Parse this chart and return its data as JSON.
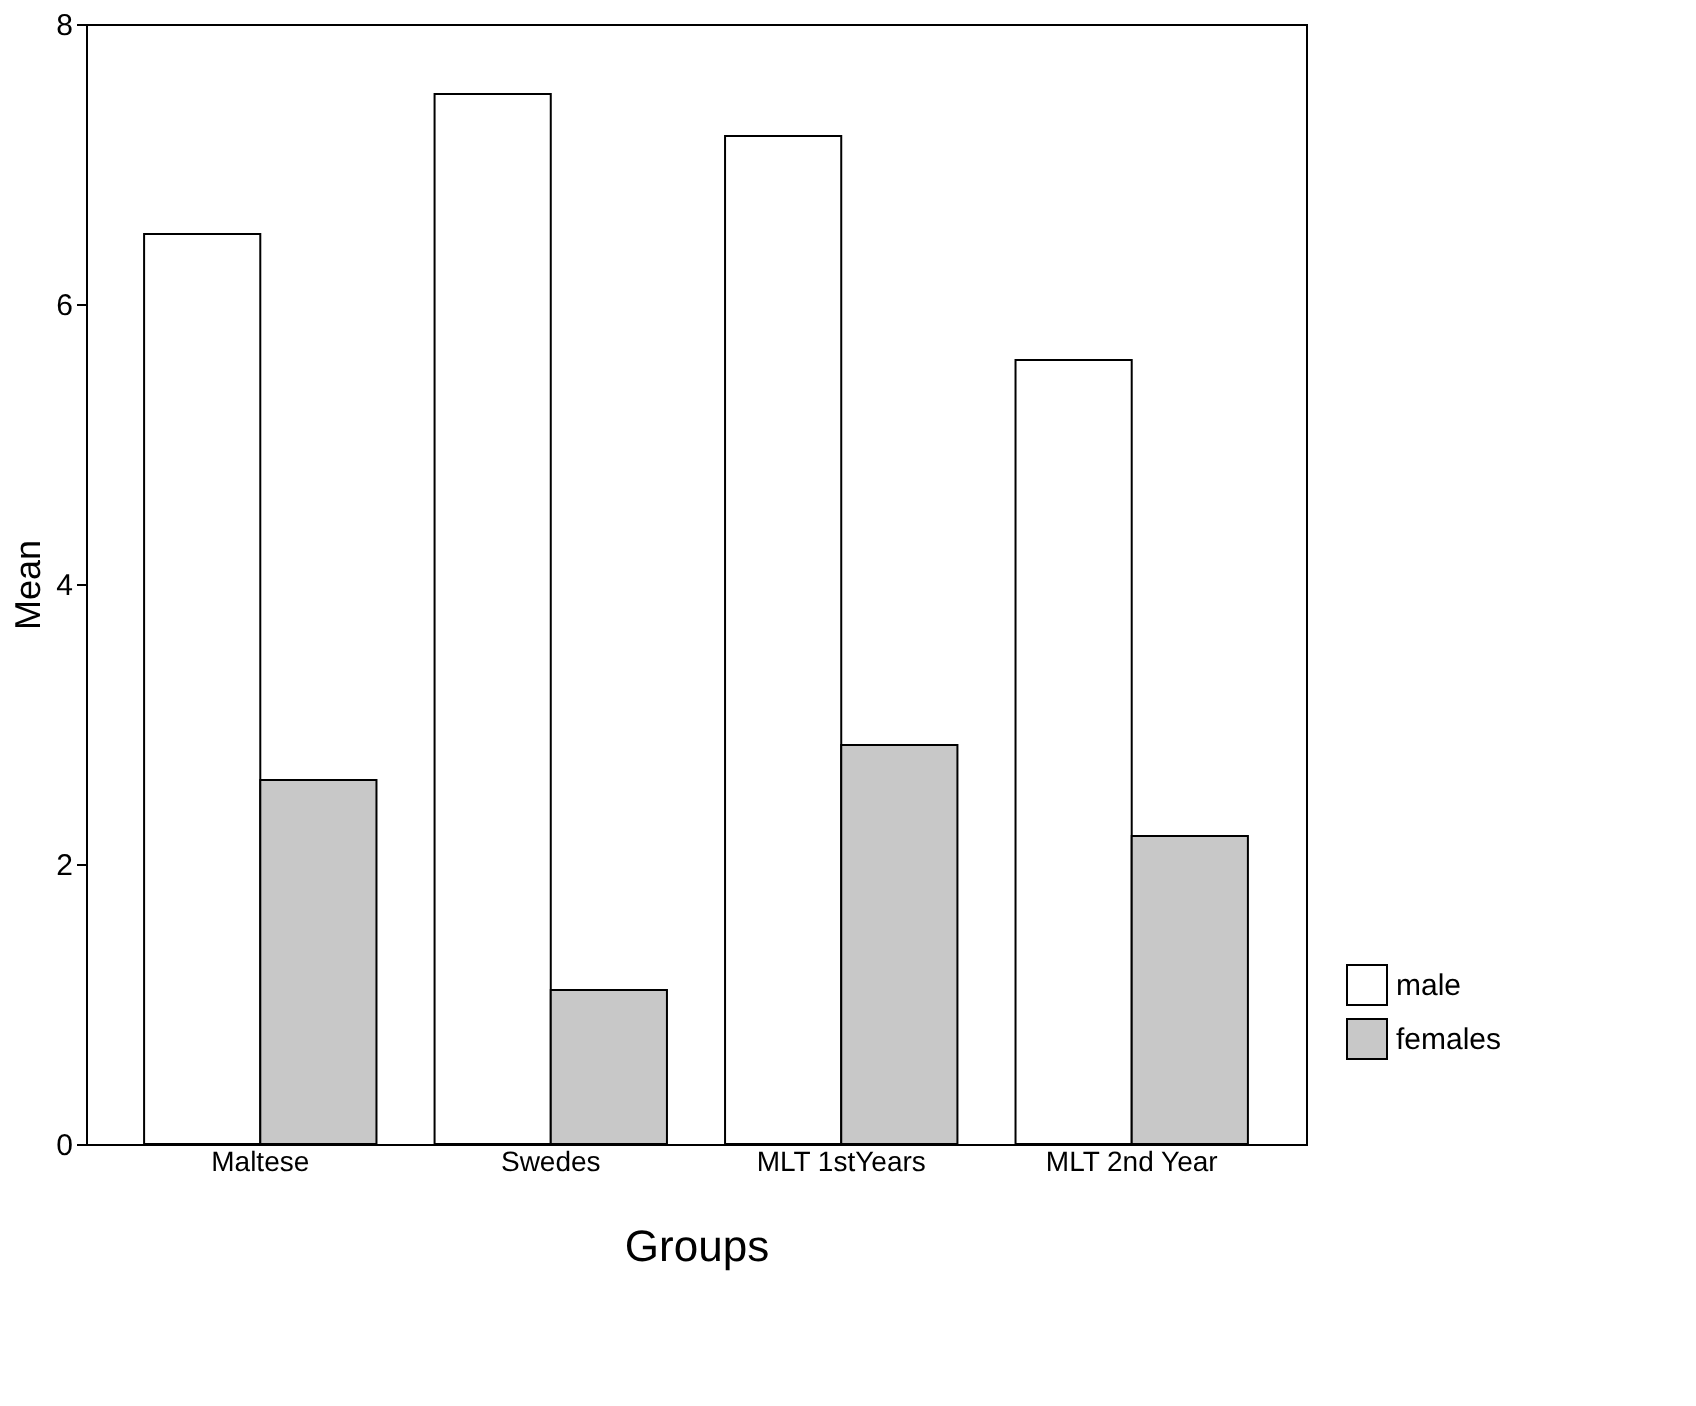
{
  "chart_data": {
    "type": "bar",
    "xlabel": "Groups",
    "ylabel": "Mean",
    "categories": [
      "Maltese",
      "Swedes",
      "MLT 1stYears",
      "MLT 2nd Year"
    ],
    "series": [
      {
        "name": "male",
        "color": "#ffffff",
        "values": [
          6.5,
          7.5,
          7.2,
          5.6
        ]
      },
      {
        "name": "females",
        "color": "#c8c8c8",
        "values": [
          2.6,
          1.1,
          2.85,
          2.2
        ]
      }
    ],
    "ylim": [
      0,
      8
    ],
    "yticks": [
      0,
      2,
      4,
      6,
      8
    ],
    "grid": false,
    "legend": "bottom right"
  }
}
